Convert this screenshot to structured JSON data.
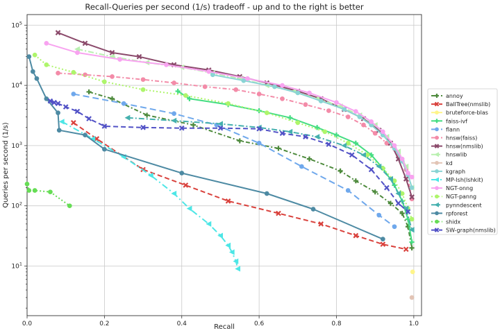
{
  "chart_data": {
    "type": "line",
    "title": "Recall-Queries per second (1/s) tradeoff - up and to the right is better",
    "xlabel": "Recall",
    "ylabel": "Queries per second (1/s)",
    "xlim": [
      0.0,
      1.02
    ],
    "ylim": [
      1.5,
      150000
    ],
    "y_scale": "log",
    "grid": true,
    "legend_placement": "right",
    "x_ticks": [
      {
        "value": 0.0,
        "label": "0.0"
      },
      {
        "value": 0.2,
        "label": "0.2"
      },
      {
        "value": 0.4,
        "label": "0.4"
      },
      {
        "value": 0.6,
        "label": "0.6"
      },
      {
        "value": 0.8,
        "label": "0.8"
      },
      {
        "value": 1.0,
        "label": "1.0"
      }
    ],
    "y_ticks": [
      {
        "value": 10,
        "base": "10",
        "exp": "1"
      },
      {
        "value": 100,
        "base": "10",
        "exp": "2"
      },
      {
        "value": 1000,
        "base": "10",
        "exp": "3"
      },
      {
        "value": 10000,
        "base": "10",
        "exp": "4"
      },
      {
        "value": 100000,
        "base": "10",
        "exp": "5"
      }
    ],
    "series": [
      {
        "name": "annoy",
        "color": "#4d8a3c",
        "dash": "6,3,2,3",
        "marker": "plus",
        "x": [
          0.16,
          0.22,
          0.31,
          0.43,
          0.55,
          0.65,
          0.73,
          0.81,
          0.85,
          0.9,
          0.94,
          0.97,
          0.985,
          0.995
        ],
        "y": [
          7800,
          6000,
          3200,
          2200,
          1200,
          900,
          600,
          380,
          260,
          170,
          110,
          75,
          45,
          20
        ]
      },
      {
        "name": "BallTree(nmslib)",
        "color": "#d9413c",
        "dash": "7,4",
        "marker": "x",
        "x": [
          0.12,
          0.18,
          0.3,
          0.41,
          0.52,
          0.65,
          0.76,
          0.85,
          0.92,
          0.98
        ],
        "y": [
          2400,
          1300,
          400,
          220,
          120,
          75,
          50,
          32,
          23,
          19
        ]
      },
      {
        "name": "bruteforce-blas",
        "color": "#fff58a",
        "dash": "",
        "marker": "circle",
        "x": [
          0.997
        ],
        "y": [
          8
        ]
      },
      {
        "name": "faiss-ivf",
        "color": "#44dd82",
        "dash": "",
        "marker": "plus",
        "x": [
          0.39,
          0.42,
          0.52,
          0.6,
          0.68,
          0.75,
          0.8,
          0.85,
          0.89,
          0.92,
          0.95,
          0.97,
          0.985,
          0.995
        ],
        "y": [
          8000,
          6000,
          4800,
          3800,
          2900,
          2000,
          1500,
          1100,
          700,
          420,
          220,
          120,
          60,
          25
        ]
      },
      {
        "name": "flann",
        "color": "#6fa8ec",
        "dash": "9,5",
        "marker": "circle",
        "x": [
          0.12,
          0.25,
          0.38,
          0.49,
          0.6,
          0.71,
          0.83,
          0.91,
          0.95
        ],
        "y": [
          7200,
          5000,
          3400,
          2200,
          1100,
          450,
          180,
          70,
          45
        ]
      },
      {
        "name": "hnsw(faiss)",
        "color": "#f38ba8",
        "dash": "6,3,2,3",
        "marker": "circle",
        "x": [
          0.08,
          0.15,
          0.22,
          0.3,
          0.38,
          0.46,
          0.54,
          0.6,
          0.66,
          0.72,
          0.78,
          0.83,
          0.87,
          0.9,
          0.93,
          0.96,
          0.98,
          0.995
        ],
        "y": [
          16000,
          15000,
          14000,
          12500,
          11000,
          9500,
          8500,
          7200,
          6000,
          4800,
          3800,
          3000,
          2200,
          1600,
          1100,
          700,
          400,
          130
        ]
      },
      {
        "name": "hnsw(nmslib)",
        "color": "#8b4a6b",
        "dash": "",
        "marker": "x",
        "x": [
          0.08,
          0.15,
          0.22,
          0.29,
          0.38,
          0.47,
          0.55,
          0.62,
          0.7,
          0.76,
          0.82,
          0.87,
          0.91,
          0.94,
          0.96,
          0.98,
          0.995
        ],
        "y": [
          75000,
          50000,
          35000,
          30000,
          22000,
          18000,
          14000,
          11000,
          8000,
          6000,
          4000,
          2800,
          1800,
          1100,
          600,
          280,
          140
        ]
      },
      {
        "name": "hnswlib",
        "color": "#b9f0b0",
        "dash": "8,3,2,3",
        "marker": "triangle-left",
        "x": [
          0.13,
          0.22,
          0.31,
          0.4,
          0.48,
          0.55,
          0.62,
          0.69,
          0.75,
          0.81,
          0.86,
          0.9,
          0.93,
          0.96,
          0.98,
          0.995
        ],
        "y": [
          40000,
          30000,
          24000,
          20000,
          16000,
          13000,
          10000,
          8000,
          6000,
          4500,
          3200,
          2200,
          1400,
          800,
          450,
          200
        ]
      },
      {
        "name": "kd",
        "color": "#e2c4b5",
        "dash": "",
        "marker": "circle",
        "x": [
          0.995
        ],
        "y": [
          3
        ]
      },
      {
        "name": "kgraph",
        "color": "#8ad4d4",
        "dash": "",
        "marker": "circle",
        "x": [
          0.48,
          0.56,
          0.64,
          0.7,
          0.76,
          0.82,
          0.86,
          0.89,
          0.92,
          0.95,
          0.97,
          0.985,
          0.995
        ],
        "y": [
          15000,
          12000,
          9500,
          7500,
          5500,
          4000,
          3000,
          2200,
          1500,
          900,
          550,
          330,
          200
        ]
      },
      {
        "name": "MP-lsh(lshkit)",
        "color": "#4de6e6",
        "dash": "9,4,2,4",
        "marker": "triangle-left",
        "x": [
          0.09,
          0.17,
          0.25,
          0.32,
          0.38,
          0.42,
          0.47,
          0.5,
          0.52,
          0.53,
          0.54,
          0.545
        ],
        "y": [
          2500,
          1300,
          650,
          320,
          160,
          90,
          50,
          32,
          22,
          17,
          12,
          9
        ]
      },
      {
        "name": "NGT-onng",
        "color": "#f8a3f0",
        "dash": "",
        "marker": "circle",
        "x": [
          0.05,
          0.13,
          0.24,
          0.36,
          0.47,
          0.57,
          0.66,
          0.73,
          0.8,
          0.85,
          0.89,
          0.92,
          0.95,
          0.97,
          0.985,
          0.995
        ],
        "y": [
          50000,
          35000,
          27000,
          22000,
          17000,
          13000,
          10000,
          7500,
          5200,
          3700,
          2500,
          1700,
          1000,
          600,
          350,
          300
        ]
      },
      {
        "name": "NGT-panng",
        "color": "#aef56b",
        "dash": "2,3",
        "marker": "circle",
        "x": [
          0.02,
          0.05,
          0.12,
          0.2,
          0.3,
          0.41,
          0.52,
          0.62,
          0.7,
          0.77,
          0.83,
          0.88,
          0.92,
          0.95,
          0.97,
          0.985,
          0.995
        ],
        "y": [
          32000,
          22000,
          16500,
          11500,
          8500,
          6800,
          5000,
          3500,
          2400,
          1700,
          1100,
          700,
          420,
          260,
          160,
          90,
          60
        ]
      },
      {
        "name": "pynndescent",
        "color": "#45b0ae",
        "dash": "8,3,2,3",
        "marker": "triangle-left",
        "x": [
          0.26,
          0.38,
          0.5,
          0.6,
          0.68,
          0.75,
          0.82,
          0.87,
          0.91,
          0.94,
          0.96,
          0.98,
          0.995
        ],
        "y": [
          2900,
          2600,
          2300,
          2000,
          1700,
          1400,
          1000,
          700,
          450,
          280,
          160,
          90,
          40
        ]
      },
      {
        "name": "rpforest",
        "color": "#4d8aa3",
        "dash": "",
        "marker": "circle",
        "x": [
          0.005,
          0.015,
          0.025,
          0.05,
          0.08,
          0.083,
          0.15,
          0.2,
          0.4,
          0.62,
          0.74,
          0.92
        ],
        "y": [
          30000,
          17000,
          13000,
          6000,
          3500,
          1800,
          1500,
          870,
          350,
          160,
          88,
          28
        ]
      },
      {
        "name": "shidx",
        "color": "#66dd55",
        "dash": "2,3",
        "marker": "circle",
        "x": [
          0.0,
          0.005,
          0.02,
          0.06,
          0.11
        ],
        "y": [
          230,
          180,
          180,
          170,
          100
        ]
      },
      {
        "name": "SW-graph(nmslib)",
        "color": "#5151c6",
        "dash": "7,4",
        "marker": "x",
        "x": [
          0.06,
          0.07,
          0.08,
          0.1,
          0.13,
          0.16,
          0.2,
          0.3,
          0.4,
          0.5,
          0.6,
          0.66,
          0.72,
          0.78,
          0.84,
          0.89,
          0.93,
          0.96,
          0.985
        ],
        "y": [
          5500,
          5200,
          5000,
          4400,
          3700,
          2800,
          2100,
          2000,
          1950,
          1950,
          1900,
          1600,
          1400,
          1050,
          700,
          400,
          200,
          110,
          80
        ]
      }
    ]
  }
}
